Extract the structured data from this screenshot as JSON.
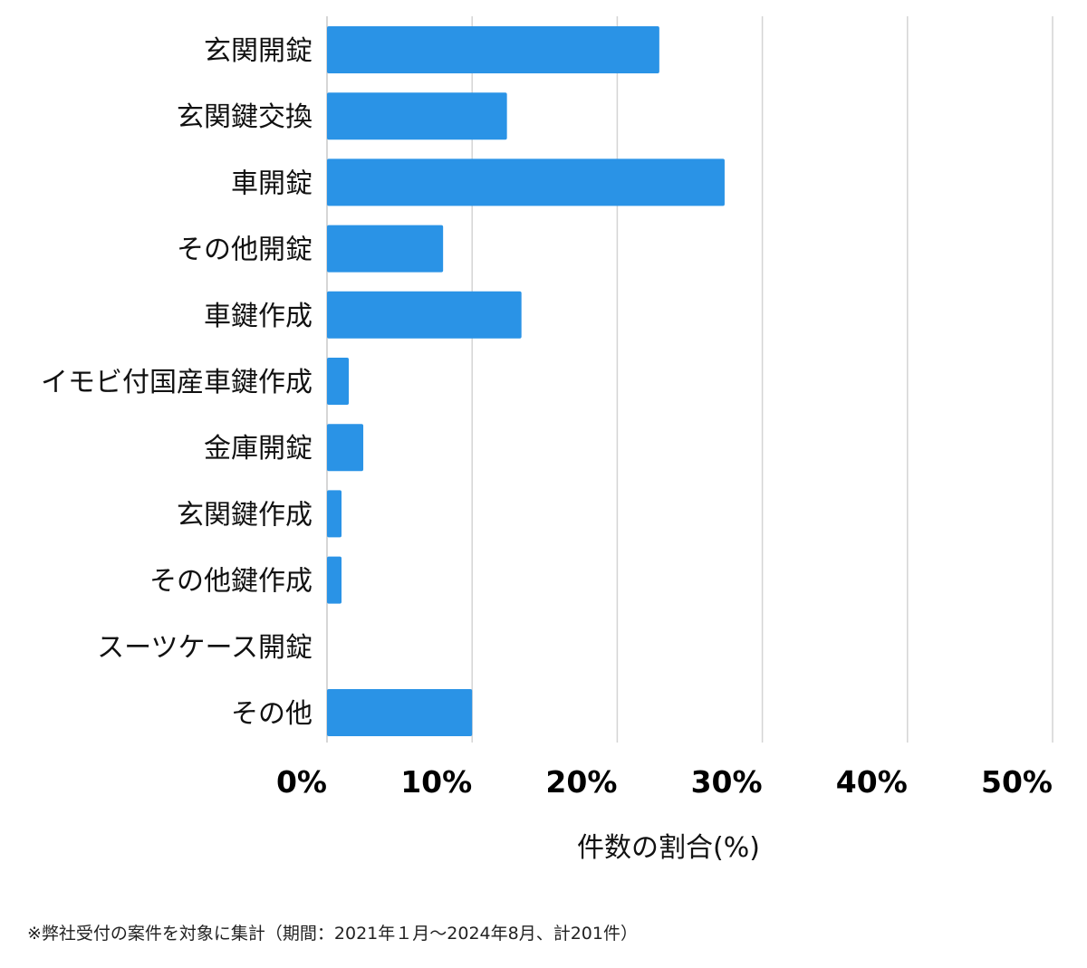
{
  "chart_data": {
    "type": "bar",
    "orientation": "horizontal",
    "categories": [
      "玄関開錠",
      "玄関鍵交換",
      "車開錠",
      "その他開錠",
      "車鍵作成",
      "イモビ付国産車鍵作成",
      "金庫開錠",
      "玄関鍵作成",
      "その他鍵作成",
      "スーツケース開錠",
      "その他"
    ],
    "values": [
      22.9,
      12.4,
      27.4,
      8.0,
      13.4,
      1.5,
      2.5,
      1.0,
      1.0,
      0.0,
      10.0
    ],
    "xlabel": "件数の割合(%)",
    "xlim": [
      0,
      50
    ],
    "xticks": [
      "0%",
      "10%",
      "20%",
      "30%",
      "40%",
      "50%"
    ],
    "grid": "vertical",
    "bar_color": "#2a93e6",
    "grid_color": "#d4d4d4"
  },
  "footnote": "※弊社受付の案件を対象に集計（期間：2021年１月～2024年8月、計201件）"
}
